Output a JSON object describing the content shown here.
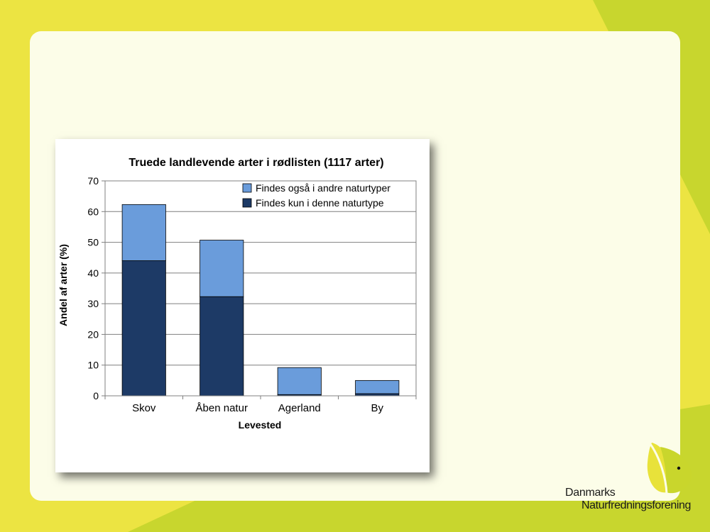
{
  "colors": {
    "background": "#ece442",
    "accent_green": "#c8d62e",
    "panel": "#fcfde8",
    "series_only_here": "#1d3a66",
    "series_also_other": "#6a9cdb"
  },
  "logo": {
    "line1": "Danmarks",
    "line2": "Naturfredningsforening"
  },
  "chart_data": {
    "type": "bar",
    "stacked": true,
    "title": "Truede landlevende arter i rødlisten (1117 arter)",
    "xlabel": "Levested",
    "ylabel": "Andel af arter (%)",
    "ylim": [
      0,
      70
    ],
    "yticks": [
      0,
      10,
      20,
      30,
      40,
      50,
      60,
      70
    ],
    "grid": true,
    "legend_position": "top-right",
    "categories": [
      "Skov",
      "Åben natur",
      "Agerland",
      "By"
    ],
    "series": [
      {
        "name": "Findes kun i denne naturtype",
        "color": "#1d3a66",
        "values": [
          44,
          32.3,
          0.4,
          0.7
        ]
      },
      {
        "name": "Findes også i andre naturtyper",
        "color": "#6a9cdb",
        "values": [
          18.3,
          18.4,
          8.8,
          4.3
        ]
      }
    ],
    "legend_order": [
      "Findes også i andre naturtyper",
      "Findes kun i denne naturtype"
    ]
  }
}
